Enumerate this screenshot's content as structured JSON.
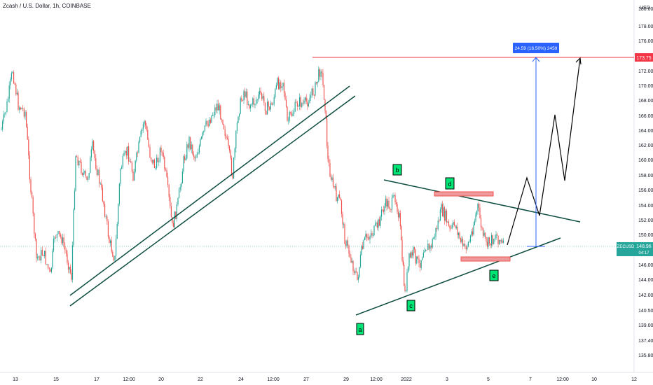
{
  "header": {
    "title": "Zcash / U.S. Dollar, 1h, COINBASE"
  },
  "chart_data": {
    "type": "candlestick",
    "symbol": "ZECUSD",
    "currency_label": "USD",
    "y_ticks": [
      "180.00",
      "178.00",
      "176.00",
      "174.00",
      "172.00",
      "170.00",
      "168.00",
      "166.00",
      "164.00",
      "162.00",
      "160.00",
      "158.00",
      "156.00",
      "154.00",
      "152.00",
      "150.00",
      "148.00",
      "146.00",
      "144.00",
      "142.00",
      "140.50",
      "139.00",
      "137.40",
      "135.80"
    ],
    "x_ticks": [
      "13",
      "15",
      "17",
      "12:00",
      "20",
      "22",
      "24",
      "12:00",
      "27",
      "29",
      "12:00",
      "2022",
      "3",
      "5",
      "7",
      "12:00",
      "10",
      "12"
    ],
    "current_price": {
      "label": "148.96",
      "sub_label": "04:17",
      "value": 148.96
    },
    "target_price": {
      "label": "173.75",
      "value": 173.75
    },
    "measure_label": "24.59 (16.50%) 2459",
    "wave_labels": [
      "a",
      "b",
      "c",
      "d",
      "e"
    ],
    "colors": {
      "up": "#26a69a",
      "down": "#ef5350",
      "target_line": "#f23645",
      "measure": "#2962ff",
      "trend": "#0d4d40",
      "box": "#ef5350",
      "label_bg": "#00e676"
    }
  }
}
